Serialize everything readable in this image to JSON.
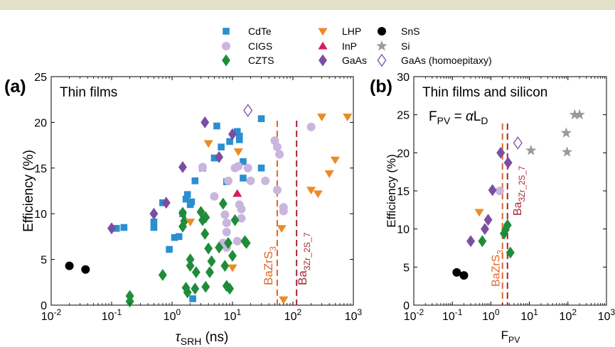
{
  "legend": [
    {
      "label": "CdTe",
      "marker": "square",
      "color": "#2a8fd0"
    },
    {
      "label": "CIGS",
      "marker": "circle",
      "color": "#c9b5dd"
    },
    {
      "label": "CZTS",
      "marker": "diamond",
      "color": "#1f8c3a"
    },
    {
      "label": "LHP",
      "marker": "triangle-down",
      "color": "#ec8b24"
    },
    {
      "label": "InP",
      "marker": "triangle-up",
      "color": "#d81b60"
    },
    {
      "label": "GaAs",
      "marker": "diamond",
      "color": "#7b4ea3"
    },
    {
      "label": "SnS",
      "marker": "circle",
      "color": "#000000"
    },
    {
      "label": "Si",
      "marker": "star",
      "color": "#9a9a9a"
    },
    {
      "label": "GaAs (homoepitaxy)",
      "marker": "diamond-open",
      "color": "#7b4ea3"
    }
  ],
  "chart_data": [
    {
      "type": "scatter",
      "panel": "(a)",
      "title": "Thin films",
      "xlabel": "τ_SRH (ns)",
      "ylabel": "Efficiency (%)",
      "xscale": "log",
      "xlim": [
        0.01,
        1000
      ],
      "ylim": [
        0,
        25
      ],
      "xticks": [
        "10^-2",
        "10^-1",
        "10^0",
        "10^1",
        "10^2",
        "10^3"
      ],
      "yticks": [
        0,
        5,
        10,
        15,
        20,
        25
      ],
      "grid": false,
      "vlines": [
        {
          "name": "BaZrS_3",
          "x": 55,
          "color": "#e0662a"
        },
        {
          "name": "Ba_3Zr_2S_7",
          "x": 115,
          "color": "#a02838"
        }
      ],
      "series": [
        {
          "name": "CdTe",
          "points": [
            [
              0.12,
              8.4
            ],
            [
              0.16,
              8.5
            ],
            [
              0.5,
              9.1
            ],
            [
              0.5,
              8.5
            ],
            [
              0.7,
              11.2
            ],
            [
              0.9,
              6.1
            ],
            [
              1.1,
              7.4
            ],
            [
              1.3,
              7.5
            ],
            [
              1.5,
              10.0
            ],
            [
              1.7,
              11.6
            ],
            [
              1.8,
              12.1
            ],
            [
              2.0,
              11.0
            ],
            [
              2.1,
              11.3
            ],
            [
              2.4,
              13.6
            ],
            [
              2.2,
              0.7
            ],
            [
              3.2,
              15.0
            ],
            [
              5.0,
              16.1
            ],
            [
              5.5,
              19.6
            ],
            [
              6.5,
              17.3
            ],
            [
              8.0,
              13.5
            ],
            [
              9.0,
              17.9
            ],
            [
              12.0,
              19.0
            ],
            [
              13.0,
              18.5
            ],
            [
              13.0,
              18.1
            ],
            [
              15.0,
              13.9
            ],
            [
              15.0,
              15.7
            ],
            [
              30.0,
              20.4
            ],
            [
              30.0,
              15.0
            ]
          ]
        },
        {
          "name": "CIGS",
          "points": [
            [
              3.2,
              15.1
            ],
            [
              5.0,
              11.9
            ],
            [
              7.5,
              9.9
            ],
            [
              8.0,
              9.0
            ],
            [
              8.0,
              8.0
            ],
            [
              8.5,
              13.6
            ],
            [
              11.0,
              15.0
            ],
            [
              12.5,
              15.2
            ],
            [
              13.0,
              11.0
            ],
            [
              14.0,
              10.5
            ],
            [
              14.0,
              9.5
            ],
            [
              12.0,
              7.0
            ],
            [
              18.0,
              15.0
            ],
            [
              20.0,
              13.6
            ],
            [
              35.0,
              13.6
            ],
            [
              50.0,
              18.0
            ],
            [
              55.0,
              17.3
            ],
            [
              60.0,
              16.5
            ],
            [
              55.0,
              12.6
            ],
            [
              70.0,
              10.7
            ],
            [
              70.0,
              10.3
            ],
            [
              200.0,
              19.5
            ],
            [
              7.0,
              6.8
            ],
            [
              8.0,
              6.3
            ]
          ]
        },
        {
          "name": "CZTS",
          "points": [
            [
              0.2,
              1.0
            ],
            [
              0.2,
              0.4
            ],
            [
              0.7,
              3.3
            ],
            [
              1.5,
              10.1
            ],
            [
              1.6,
              9.2
            ],
            [
              1.5,
              8.6
            ],
            [
              1.7,
              1.9
            ],
            [
              1.8,
              1.4
            ],
            [
              2.0,
              5.0
            ],
            [
              2.0,
              4.3
            ],
            [
              2.4,
              1.8
            ],
            [
              2.5,
              3.6
            ],
            [
              3.0,
              10.2
            ],
            [
              3.2,
              9.3
            ],
            [
              3.6,
              9.6
            ],
            [
              3.5,
              7.8
            ],
            [
              3.6,
              2.0
            ],
            [
              4.0,
              6.2
            ],
            [
              4.2,
              3.6
            ],
            [
              4.5,
              4.8
            ],
            [
              6.0,
              6.3
            ],
            [
              7.0,
              11.1
            ],
            [
              7.5,
              4.3
            ],
            [
              8.0,
              2.1
            ],
            [
              8.5,
              6.8
            ],
            [
              9.0,
              1.8
            ],
            [
              10.0,
              5.4
            ],
            [
              11.0,
              9.3
            ],
            [
              16.0,
              7.0
            ],
            [
              17.0,
              6.8
            ]
          ]
        },
        {
          "name": "LHP",
          "points": [
            [
              2.0,
              9.1
            ],
            [
              4.0,
              17.7
            ],
            [
              10.0,
              4.1
            ],
            [
              12.5,
              16.8
            ],
            [
              65.0,
              8.4
            ],
            [
              70.0,
              0.6
            ],
            [
              200.0,
              12.6
            ],
            [
              260.0,
              12.2
            ],
            [
              300.0,
              20.6
            ],
            [
              400.0,
              14.4
            ],
            [
              500.0,
              15.9
            ],
            [
              800.0,
              20.6
            ]
          ]
        },
        {
          "name": "InP",
          "points": [
            [
              12.0,
              12.2
            ]
          ]
        },
        {
          "name": "GaAs",
          "points": [
            [
              0.1,
              8.4
            ],
            [
              0.5,
              10.0
            ],
            [
              0.8,
              11.2
            ],
            [
              1.5,
              15.1
            ],
            [
              3.5,
              20.0
            ],
            [
              6.0,
              16.2
            ],
            [
              10.0,
              18.7
            ]
          ]
        },
        {
          "name": "SnS",
          "points": [
            [
              0.02,
              4.3
            ],
            [
              0.037,
              3.9
            ]
          ]
        },
        {
          "name": "GaAs (homoepitaxy)",
          "points": [
            [
              18.0,
              21.3
            ]
          ]
        }
      ]
    },
    {
      "type": "scatter",
      "panel": "(b)",
      "title": "Thin films and silicon",
      "annotation": "F_PV = αL_D",
      "xlabel": "F_PV",
      "ylabel": "Efficiency (%)",
      "xscale": "log",
      "xlim": [
        0.01,
        1000
      ],
      "ylim": [
        0,
        30
      ],
      "xticks": [
        "10^-2",
        "10^-1",
        "10^0",
        "10^1",
        "10^2",
        "10^3"
      ],
      "yticks": [
        0,
        5,
        10,
        15,
        20,
        25,
        30
      ],
      "grid": false,
      "vlines": [
        {
          "name": "BaZrS_3",
          "x": 2.0,
          "color": "#e0662a"
        },
        {
          "name": "Ba_3Zr_2S_7",
          "x": 2.7,
          "color": "#a02838"
        }
      ],
      "series": [
        {
          "name": "CIGS",
          "points": [
            [
              1.7,
              15.0
            ]
          ]
        },
        {
          "name": "CZTS",
          "points": [
            [
              0.6,
              8.4
            ],
            [
              2.2,
              9.4
            ],
            [
              2.4,
              9.9
            ],
            [
              2.7,
              10.5
            ],
            [
              3.2,
              6.9
            ]
          ]
        },
        {
          "name": "LHP",
          "points": [
            [
              0.5,
              12.2
            ]
          ]
        },
        {
          "name": "GaAs",
          "points": [
            [
              0.3,
              8.4
            ],
            [
              0.7,
              10.0
            ],
            [
              0.85,
              11.2
            ],
            [
              1.1,
              15.1
            ],
            [
              1.8,
              20.0
            ],
            [
              2.8,
              18.7
            ]
          ]
        },
        {
          "name": "SnS",
          "points": [
            [
              0.13,
              4.3
            ],
            [
              0.2,
              3.9
            ]
          ]
        },
        {
          "name": "Si",
          "points": [
            [
              11.0,
              20.3
            ],
            [
              95.0,
              20.1
            ],
            [
              90.0,
              22.6
            ],
            [
              150.0,
              25.0
            ],
            [
              200.0,
              25.0
            ]
          ]
        },
        {
          "name": "GaAs (homoepitaxy)",
          "points": [
            [
              5.0,
              21.3
            ]
          ]
        }
      ]
    }
  ]
}
